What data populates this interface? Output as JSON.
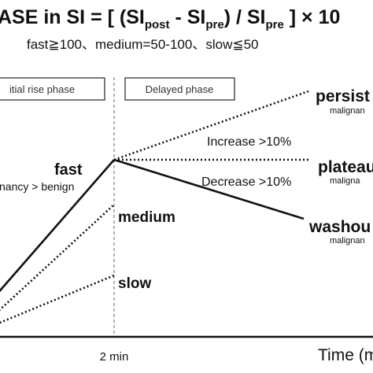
{
  "formula": {
    "prefix": "ASE in SI = [ (SI",
    "post": "post",
    "minus": " - SI",
    "pre": "pre",
    "divide": ")  / SI",
    "pre2": "pre",
    "suffix": " ] × 10"
  },
  "thresholds": "fast≧100、medium=50-100、slow≦50",
  "phases": {
    "initial": "itial rise phase",
    "delayed": "Delayed phase"
  },
  "labels": {
    "fast": "fast",
    "fast_note": "nancy > benign",
    "medium": "medium",
    "slow": "slow",
    "increase": "Increase >10%",
    "decrease": "Decrease >10%",
    "persistent": "persist",
    "persistent_sub": "malignan",
    "plateau": "plateau",
    "plateau_sub": "maligna",
    "washout": "washou",
    "washout_sub": "malignan"
  },
  "axis": {
    "tick_2min": "2 min",
    "xlabel": "Time (m"
  }
}
